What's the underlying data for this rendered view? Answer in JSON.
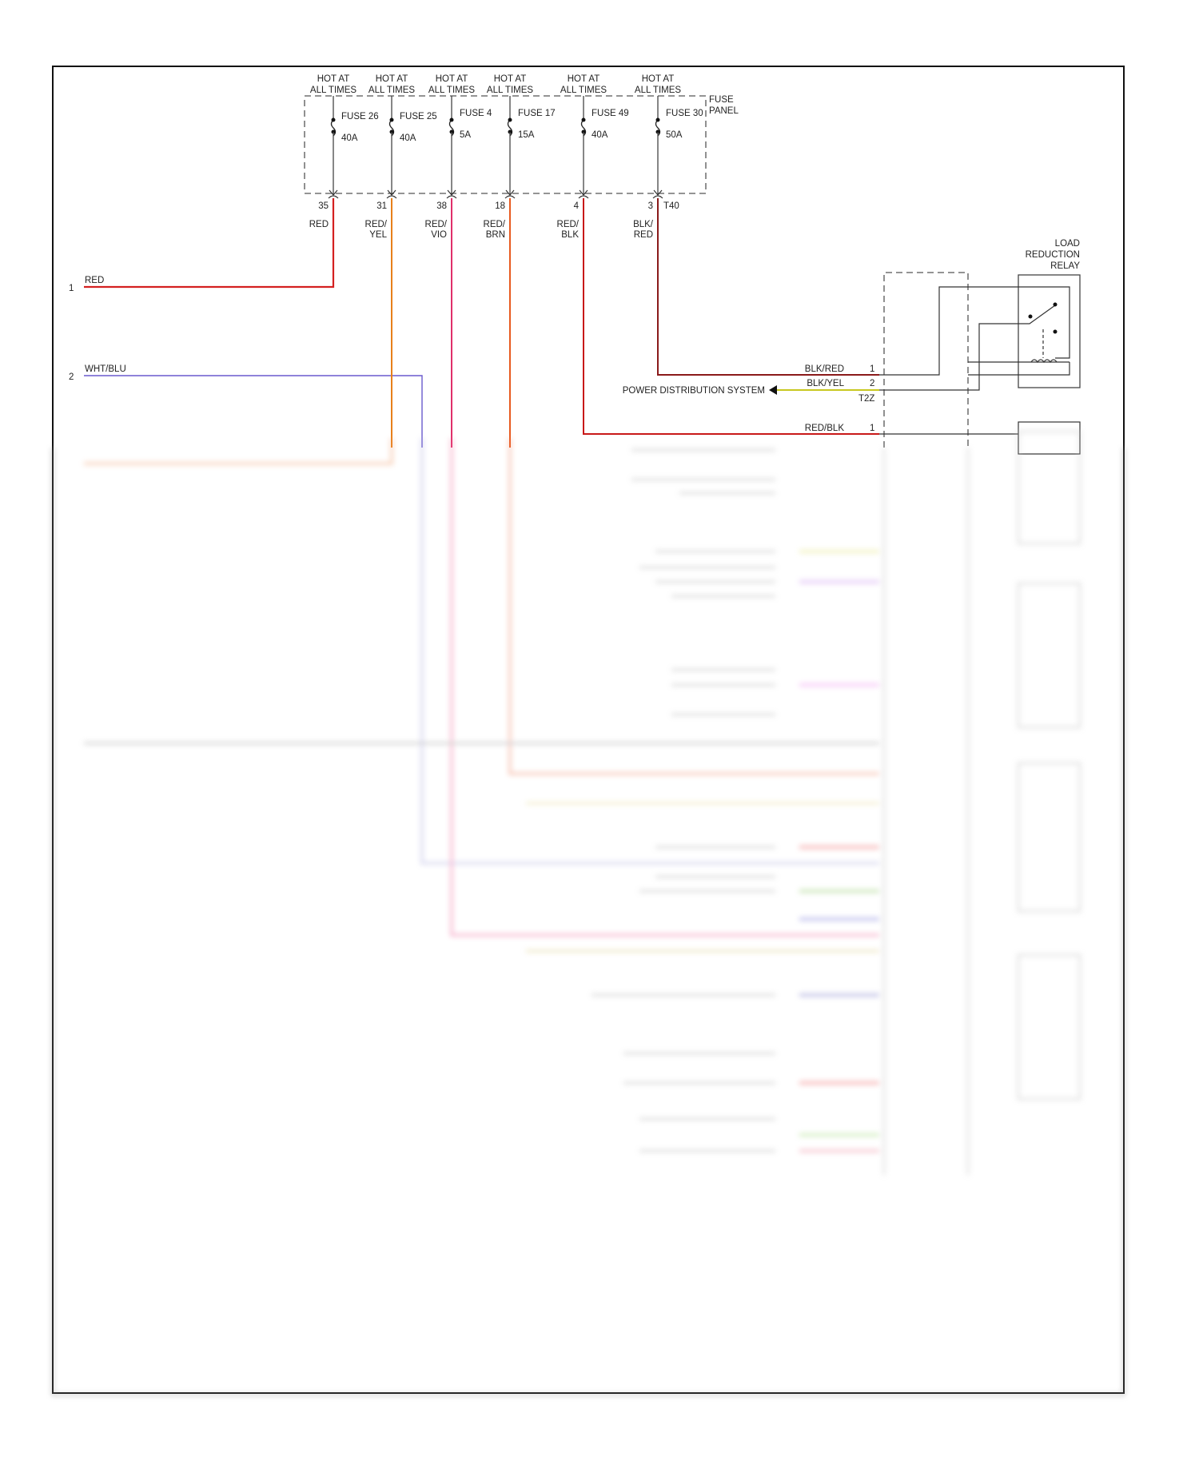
{
  "fuse_panel": {
    "label_line1": "FUSE",
    "label_line2": "PANEL",
    "connector": "T40",
    "fuses": [
      {
        "hot1": "HOT AT",
        "hot2": "ALL TIMES",
        "name": "FUSE 26",
        "rating": "40A",
        "pin": "35",
        "wire1": "RED",
        "wire2": "",
        "color": "#d42020"
      },
      {
        "hot1": "HOT AT",
        "hot2": "ALL TIMES",
        "name": "FUSE 25",
        "rating": "40A",
        "pin": "31",
        "wire1": "RED/",
        "wire2": "YEL",
        "color": "#e8801a"
      },
      {
        "hot1": "HOT AT",
        "hot2": "ALL TIMES",
        "name": "FUSE 4",
        "rating": "5A",
        "pin": "38",
        "wire1": "RED/",
        "wire2": "VIO",
        "color": "#e0306a"
      },
      {
        "hot1": "HOT AT",
        "hot2": "ALL TIMES",
        "name": "FUSE 17",
        "rating": "15A",
        "pin": "18",
        "wire1": "RED/",
        "wire2": "BRN",
        "color": "#e85a20"
      },
      {
        "hot1": "HOT AT",
        "hot2": "ALL TIMES",
        "name": "FUSE 49",
        "rating": "40A",
        "pin": "4",
        "wire1": "RED/",
        "wire2": "BLK",
        "color": "#c81818"
      },
      {
        "hot1": "HOT AT",
        "hot2": "ALL TIMES",
        "name": "FUSE 30",
        "rating": "50A",
        "pin": "3",
        "wire1": "BLK/",
        "wire2": "RED",
        "color": "#8a1a1a"
      }
    ]
  },
  "left_wires": [
    {
      "num": "1",
      "label": "RED",
      "color": "#d42020"
    },
    {
      "num": "2",
      "label": "WHT/BLU",
      "color": "#6a5acd"
    }
  ],
  "relay": {
    "title1": "LOAD",
    "title2": "REDUCTION",
    "title3": "RELAY",
    "connector": "T2Z",
    "pins": [
      {
        "wire": "BLK/RED",
        "pin": "1"
      },
      {
        "wire": "BLK/YEL",
        "pin": "2"
      }
    ],
    "destination": "POWER DISTRIBUTION SYSTEM"
  },
  "next_relay": {
    "wire": "RED/BLK",
    "pin": "1"
  }
}
